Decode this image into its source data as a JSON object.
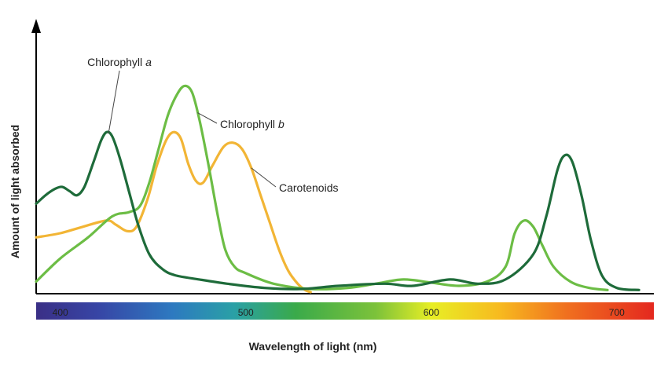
{
  "chart_data": {
    "type": "line",
    "xlabel": "Wavelength of light (nm)",
    "ylabel": "Amount of light absorbed",
    "xlim": [
      387,
      720
    ],
    "ylim": [
      0,
      1
    ],
    "x_ticks": [
      400,
      500,
      600,
      700
    ],
    "grid": false,
    "legend": "inline labels",
    "spectrum_bar": true,
    "series": [
      {
        "name": "Chlorophyll",
        "name_suffix": "a",
        "color": "#1e6b3a",
        "points": [
          [
            387,
            0.42
          ],
          [
            392,
            0.46
          ],
          [
            397,
            0.49
          ],
          [
            401,
            0.5
          ],
          [
            405,
            0.48
          ],
          [
            409,
            0.46
          ],
          [
            413,
            0.5
          ],
          [
            418,
            0.62
          ],
          [
            422,
            0.72
          ],
          [
            425,
            0.76
          ],
          [
            428,
            0.74
          ],
          [
            432,
            0.64
          ],
          [
            437,
            0.48
          ],
          [
            442,
            0.32
          ],
          [
            448,
            0.18
          ],
          [
            455,
            0.11
          ],
          [
            462,
            0.08
          ],
          [
            475,
            0.06
          ],
          [
            490,
            0.04
          ],
          [
            510,
            0.02
          ],
          [
            530,
            0.015
          ],
          [
            550,
            0.03
          ],
          [
            575,
            0.04
          ],
          [
            590,
            0.03
          ],
          [
            610,
            0.06
          ],
          [
            625,
            0.04
          ],
          [
            640,
            0.06
          ],
          [
            655,
            0.18
          ],
          [
            662,
            0.36
          ],
          [
            668,
            0.58
          ],
          [
            672,
            0.65
          ],
          [
            676,
            0.62
          ],
          [
            681,
            0.46
          ],
          [
            686,
            0.25
          ],
          [
            692,
            0.08
          ],
          [
            700,
            0.02
          ],
          [
            712,
            0.01
          ]
        ]
      },
      {
        "name": "Chlorophyll",
        "name_suffix": "b",
        "color": "#6cbd45",
        "points": [
          [
            387,
            0.05
          ],
          [
            400,
            0.16
          ],
          [
            415,
            0.26
          ],
          [
            428,
            0.36
          ],
          [
            437,
            0.38
          ],
          [
            443,
            0.41
          ],
          [
            448,
            0.52
          ],
          [
            453,
            0.68
          ],
          [
            458,
            0.84
          ],
          [
            463,
            0.94
          ],
          [
            467,
            0.98
          ],
          [
            471,
            0.95
          ],
          [
            475,
            0.82
          ],
          [
            480,
            0.6
          ],
          [
            485,
            0.36
          ],
          [
            489,
            0.2
          ],
          [
            494,
            0.12
          ],
          [
            500,
            0.09
          ],
          [
            515,
            0.04
          ],
          [
            535,
            0.015
          ],
          [
            555,
            0.02
          ],
          [
            570,
            0.04
          ],
          [
            585,
            0.06
          ],
          [
            600,
            0.045
          ],
          [
            615,
            0.03
          ],
          [
            630,
            0.05
          ],
          [
            640,
            0.12
          ],
          [
            645,
            0.28
          ],
          [
            650,
            0.34
          ],
          [
            655,
            0.31
          ],
          [
            660,
            0.22
          ],
          [
            666,
            0.12
          ],
          [
            675,
            0.05
          ],
          [
            685,
            0.02
          ],
          [
            695,
            0.01
          ]
        ]
      },
      {
        "name": "Carotenoids",
        "name_suffix": "",
        "color": "#f2b535",
        "points": [
          [
            387,
            0.26
          ],
          [
            400,
            0.28
          ],
          [
            412,
            0.31
          ],
          [
            425,
            0.34
          ],
          [
            430,
            0.32
          ],
          [
            436,
            0.29
          ],
          [
            441,
            0.31
          ],
          [
            447,
            0.44
          ],
          [
            452,
            0.6
          ],
          [
            457,
            0.72
          ],
          [
            461,
            0.76
          ],
          [
            465,
            0.73
          ],
          [
            469,
            0.61
          ],
          [
            473,
            0.53
          ],
          [
            477,
            0.52
          ],
          [
            482,
            0.6
          ],
          [
            488,
            0.69
          ],
          [
            493,
            0.71
          ],
          [
            498,
            0.68
          ],
          [
            503,
            0.59
          ],
          [
            508,
            0.46
          ],
          [
            513,
            0.33
          ],
          [
            518,
            0.2
          ],
          [
            523,
            0.1
          ],
          [
            528,
            0.04
          ],
          [
            532,
            0.01
          ],
          [
            535,
            0.0
          ]
        ]
      }
    ]
  }
}
